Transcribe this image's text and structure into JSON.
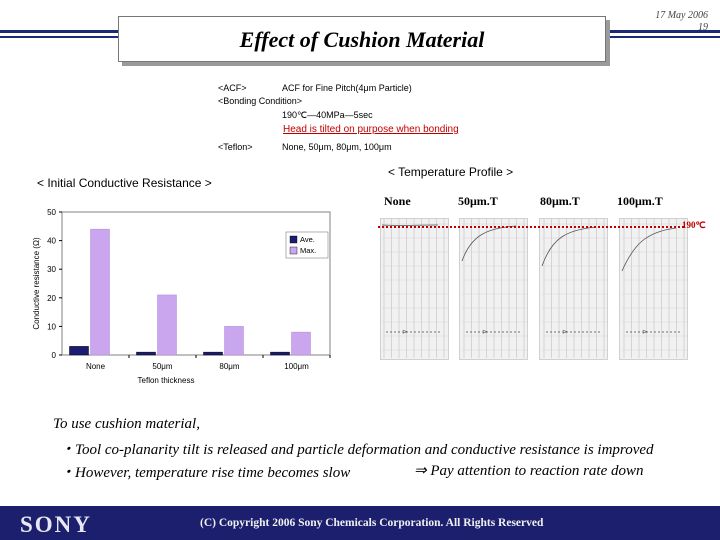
{
  "header": {
    "title": "Effect of Cushion Material",
    "date": "17 May 2006",
    "page": "19"
  },
  "conditions": {
    "acf_label": "<ACF>",
    "acf_value": "ACF for Fine Pitch(4μm Particle)",
    "bonding_label": "<Bonding  Condition>",
    "bonding_value": "190℃—40MPa—5sec",
    "note": "Head is tilted on purpose when bonding",
    "teflon_label": "<Teflon>",
    "teflon_value": "None, 50μm, 80μm, 100μm"
  },
  "left_section": {
    "heading": "< Initial Conductive Resistance >"
  },
  "right_section": {
    "heading": "< Temperature Profile >",
    "columns": [
      "None",
      "50μm.T",
      "80μm.T",
      "100μm.T"
    ],
    "temp_label": "190℃"
  },
  "chart_data": {
    "type": "bar",
    "categories": [
      "None",
      "50μm",
      "80μm",
      "100μm"
    ],
    "series": [
      {
        "name": "Ave.",
        "values": [
          3,
          1,
          1,
          1
        ],
        "color": "#1c1c74"
      },
      {
        "name": "Max.",
        "values": [
          44,
          21,
          10,
          8
        ],
        "color": "#c9a6ee"
      }
    ],
    "xlabel": "Teflon thickness",
    "ylabel": "Conductive resistance (Ω)",
    "ylim": [
      0,
      50
    ],
    "yticks": [
      "0",
      "10",
      "20",
      "30",
      "40",
      "50"
    ],
    "legend": "top-right"
  },
  "conclusion": {
    "line1": "To use cushion material,",
    "line2": "・Tool co-planarity tilt is released and particle deformation and conductive resistance is improved",
    "line3": "・However, temperature rise time becomes slow",
    "line3_right": "⇒ Pay attention to reaction rate down"
  },
  "footer": {
    "logo": "SONY",
    "copyright": "(C) Copyright 2006 Sony Chemicals Corporation. All Rights Reserved"
  },
  "colors": {
    "footer": "#1b1f6e",
    "accent_line": "#1a2a78",
    "temp_line": "#c00000"
  }
}
